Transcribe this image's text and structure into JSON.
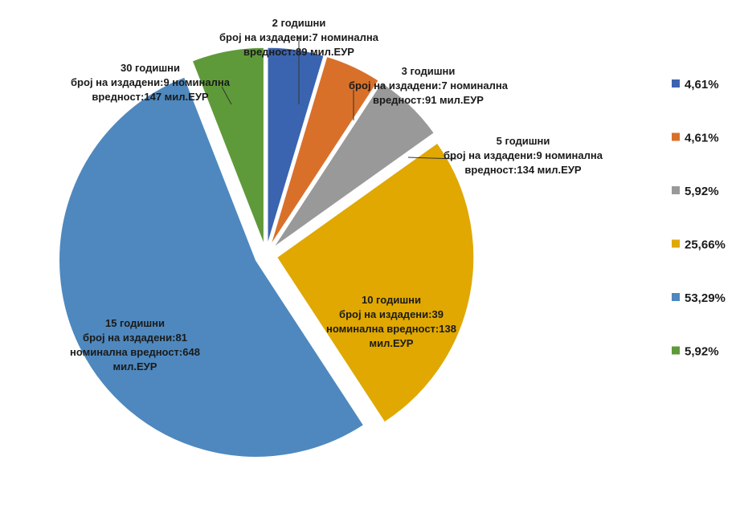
{
  "chart_data": {
    "type": "pie",
    "title": "",
    "exploded": true,
    "legend_position": "right",
    "slices": [
      {
        "percent": "4,61%",
        "value": 4.61,
        "color": "#3A64AF",
        "label_lines": [
          "2 годишни",
          "број на издадени:7 номинална",
          "вредност:89 мил.ЕУР"
        ]
      },
      {
        "percent": "4,61%",
        "value": 4.61,
        "color": "#D9702A",
        "label_lines": [
          "3 годишни",
          "број на издадени:7 номинална",
          "вредност:91 мил.ЕУР"
        ]
      },
      {
        "percent": "5,92%",
        "value": 5.92,
        "color": "#999999",
        "label_lines": [
          "5 годишни",
          "број на издадени:9 номинална",
          "вредност:134 мил.ЕУР"
        ]
      },
      {
        "percent": "25,66%",
        "value": 25.66,
        "color": "#E0A800",
        "label_lines": [
          "10 годишни",
          "број на издадени:39",
          "номинална вредност:138",
          "мил.ЕУР"
        ]
      },
      {
        "percent": "53,29%",
        "value": 53.29,
        "color": "#4E88BE",
        "label_lines": [
          "15 годишни",
          "број на издадени:81",
          "номинална вредност:648",
          "мил.ЕУР"
        ]
      },
      {
        "percent": "5,92%",
        "value": 5.92,
        "color": "#5F9A3A",
        "label_lines": [
          "30 годишни",
          "број на издадени:9 номинална",
          "вредност:147 мил.ЕУР"
        ]
      }
    ]
  }
}
